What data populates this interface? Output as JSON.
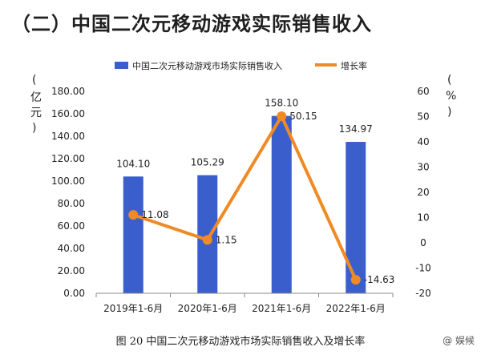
{
  "heading": "（二）中国二次元移动游戏实际销售收入",
  "caption": "图 20 中国二次元移动游戏市场实际销售收入及增长率",
  "watermark": "@ 娱候",
  "chart_data": {
    "type": "bar",
    "categories": [
      "2019年1-6月",
      "2020年1-6月",
      "2021年1-6月",
      "2022年1-6月"
    ],
    "series": [
      {
        "name": "中国二次元移动游戏市场实际销售收入",
        "type": "bar",
        "axis": "left",
        "values": [
          104.1,
          105.29,
          158.1,
          134.97
        ],
        "labels": [
          "104.10",
          "105.29",
          "158.10",
          "134.97"
        ],
        "color": "#3a5fcd"
      },
      {
        "name": "增长率",
        "type": "line",
        "axis": "right",
        "values": [
          11.08,
          1.15,
          50.15,
          -14.63
        ],
        "labels": [
          "11.08",
          "1.15",
          "50.15",
          "-14.63"
        ],
        "color": "#f08a24"
      }
    ],
    "ylabel": "亿元",
    "y2label": "%",
    "ylim": [
      0,
      180
    ],
    "y2lim": [
      -20,
      60
    ],
    "yticks": [
      "0.00",
      "20.00",
      "40.00",
      "60.00",
      "80.00",
      "100.00",
      "120.00",
      "140.00",
      "160.00",
      "180.00"
    ],
    "y2ticks": [
      "-20",
      "-10",
      "0",
      "10",
      "20",
      "30",
      "40",
      "50",
      "60"
    ],
    "legend_position": "top-center",
    "grid": false
  }
}
